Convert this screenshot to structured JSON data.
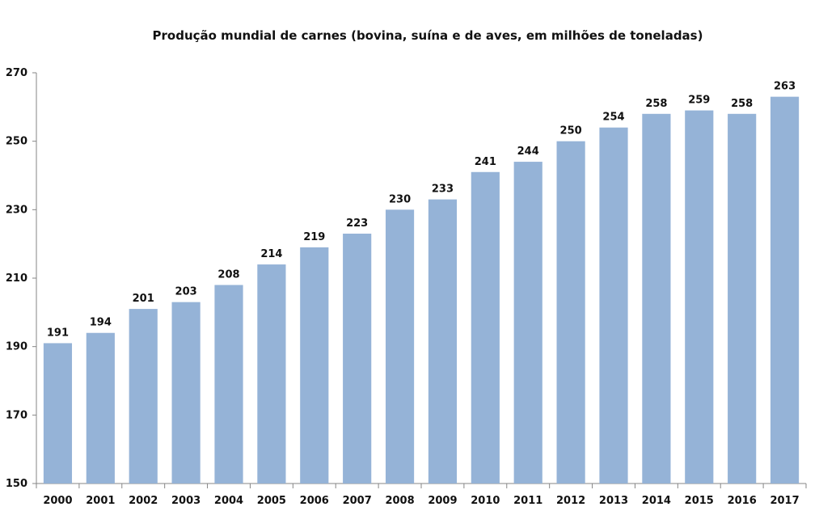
{
  "chart_data": {
    "type": "bar",
    "title": "Produção mundial de carnes (bovina, suína e de aves, em milhões de toneladas)",
    "xlabel": "",
    "ylabel": "",
    "ylim": [
      150,
      270
    ],
    "yticks": [
      150,
      170,
      190,
      210,
      230,
      250,
      270
    ],
    "grid": false,
    "legend": "none",
    "bar_color": "#95B3D7",
    "categories": [
      "2000",
      "2001",
      "2002",
      "2003",
      "2004",
      "2005",
      "2006",
      "2007",
      "2008",
      "2009",
      "2010",
      "2011",
      "2012",
      "2013",
      "2014",
      "2015",
      "2016",
      "2017"
    ],
    "values": [
      191,
      194,
      201,
      203,
      208,
      214,
      219,
      223,
      230,
      233,
      241,
      244,
      250,
      254,
      258,
      259,
      258,
      263
    ]
  }
}
